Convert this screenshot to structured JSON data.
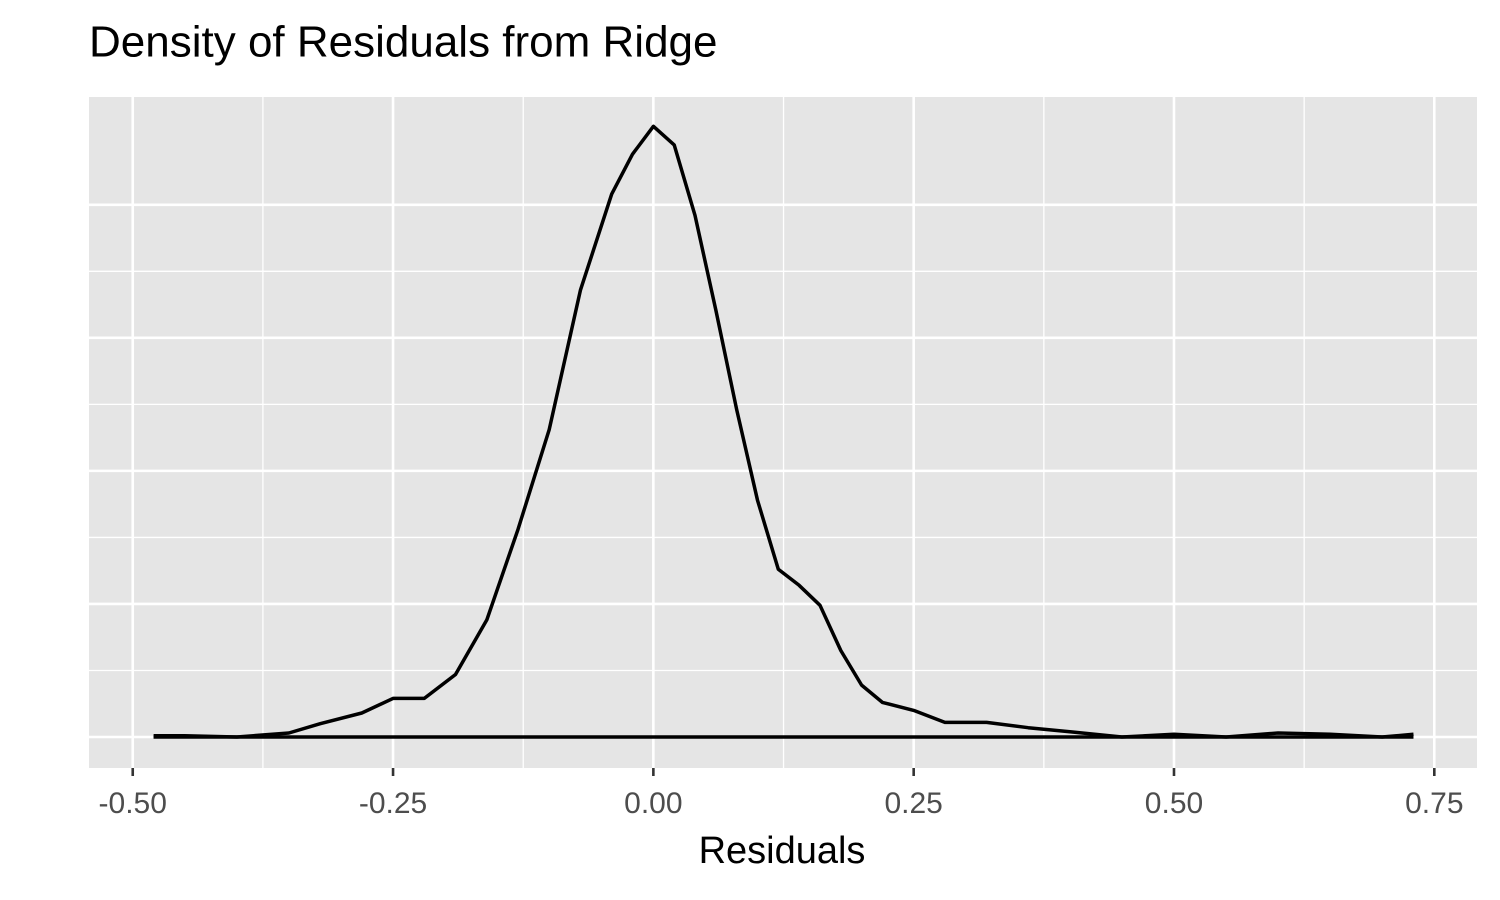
{
  "chart_data": {
    "type": "density",
    "title": "Density of Residuals from Ridge",
    "x_label": "Residuals",
    "x": [
      -0.48,
      -0.45,
      -0.4,
      -0.35,
      -0.32,
      -0.28,
      -0.25,
      -0.22,
      -0.19,
      -0.16,
      -0.13,
      -0.1,
      -0.07,
      -0.04,
      -0.02,
      0.0,
      0.02,
      0.04,
      0.06,
      0.08,
      0.1,
      0.12,
      0.14,
      0.16,
      0.18,
      0.2,
      0.22,
      0.25,
      0.28,
      0.32,
      0.36,
      0.4,
      0.45,
      0.5,
      0.55,
      0.6,
      0.65,
      0.7,
      0.73
    ],
    "values": [
      0.01,
      0.01,
      0,
      0.03,
      0.1,
      0.18,
      0.29,
      0.29,
      0.47,
      0.88,
      1.56,
      2.31,
      3.36,
      4.08,
      4.38,
      4.59,
      4.45,
      3.92,
      3.21,
      2.46,
      1.78,
      1.26,
      1.14,
      0.99,
      0.65,
      0.39,
      0.26,
      0.2,
      0.11,
      0.11,
      0.07,
      0.04,
      0,
      0.02,
      0,
      0.03,
      0.02,
      0,
      0.02
    ],
    "color": "#000000",
    "panel_color": "#e5e5e5",
    "xlim": [
      -0.542,
      0.791
    ],
    "ylim": [
      -0.233,
      4.81
    ],
    "xticks": [
      {
        "value": -0.5,
        "label": "-0.50"
      },
      {
        "value": -0.25,
        "label": "-0.25"
      },
      {
        "value": 0,
        "label": "0.00"
      },
      {
        "value": 0.25,
        "label": "0.25"
      },
      {
        "value": 0.5,
        "label": "0.50"
      },
      {
        "value": 0.75,
        "label": "0.75"
      }
    ],
    "yticks": [
      0,
      1,
      2,
      3,
      4
    ],
    "show_y_tick_labels": false,
    "grid": true
  }
}
